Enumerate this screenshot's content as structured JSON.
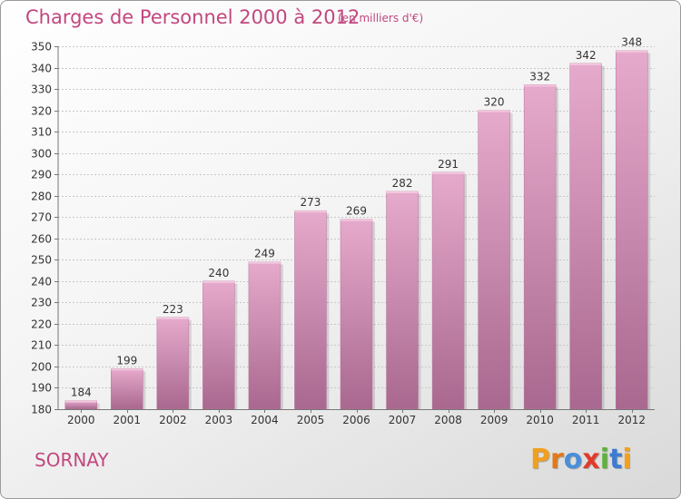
{
  "header": {
    "title": "Charges de Personnel 2000 à 2012",
    "unit": "(en milliers d'€)"
  },
  "footer": {
    "city": "SORNAY",
    "logo_letters": [
      "P",
      "r",
      "o",
      "x",
      "i",
      "t",
      "i"
    ]
  },
  "colors": {
    "title": "#c2477f",
    "bar_top": "#e6aacc",
    "bar_bottom": "#a9688f",
    "logo": [
      "#f0a020",
      "#e07a1a",
      "#4a8fd8",
      "#e23a2a",
      "#5fb13d",
      "#3d7bd0",
      "#f0a020"
    ]
  },
  "chart_data": {
    "type": "bar",
    "title": "Charges de Personnel 2000 à 2012",
    "subtitle": "(en milliers d'€)",
    "categories": [
      "2000",
      "2001",
      "2002",
      "2003",
      "2004",
      "2005",
      "2006",
      "2007",
      "2008",
      "2009",
      "2010",
      "2011",
      "2012"
    ],
    "values": [
      184,
      199,
      223,
      240,
      249,
      273,
      269,
      282,
      291,
      320,
      332,
      342,
      348
    ],
    "xlabel": "",
    "ylabel": "",
    "ylim": [
      180,
      350
    ],
    "yticks": [
      180,
      190,
      200,
      210,
      220,
      230,
      240,
      250,
      260,
      270,
      280,
      290,
      300,
      310,
      320,
      330,
      340,
      350
    ],
    "grid": "horizontal",
    "data_labels": true
  }
}
